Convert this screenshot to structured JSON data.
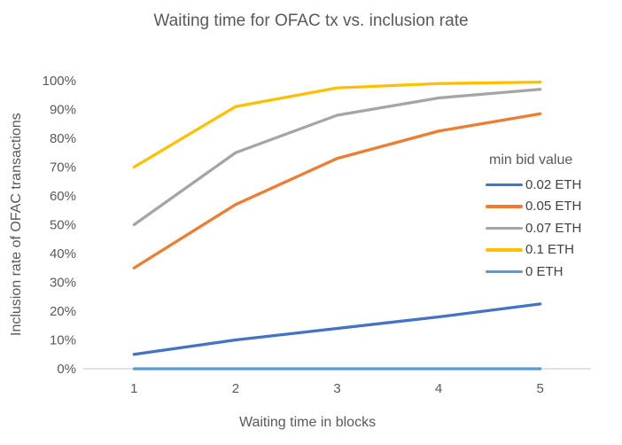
{
  "chart_data": {
    "type": "line",
    "title": "Waiting time for OFAC tx vs. inclusion rate",
    "xlabel": "Waiting time in blocks",
    "ylabel": "Inclusion rate of OFAC transactions",
    "x": [
      1,
      2,
      3,
      4,
      5
    ],
    "ylim": [
      0,
      100
    ],
    "ytick_step": 10,
    "ytick_suffix": "%",
    "grid": false,
    "legend_title": "min bid value",
    "legend_position": "right-middle",
    "axis_color": "#D9D9D9",
    "text_color": "#595959",
    "legend_text_color": "#404040",
    "series": [
      {
        "name": "0.02 ETH",
        "color": "#4472C4",
        "values": [
          5,
          10,
          14,
          18,
          22.5
        ]
      },
      {
        "name": "0.05 ETH",
        "color": "#ED7D31",
        "values": [
          35,
          57,
          73,
          82.5,
          88.5
        ]
      },
      {
        "name": "0.07 ETH",
        "color": "#A5A5A5",
        "values": [
          50,
          75,
          88,
          94,
          97
        ]
      },
      {
        "name": "0.1 ETH",
        "color": "#FFC000",
        "values": [
          70,
          91,
          97.5,
          99,
          99.5
        ]
      },
      {
        "name": "0 ETH",
        "color": "#5B9BD5",
        "values": [
          0,
          0,
          0,
          0,
          0
        ]
      }
    ]
  }
}
